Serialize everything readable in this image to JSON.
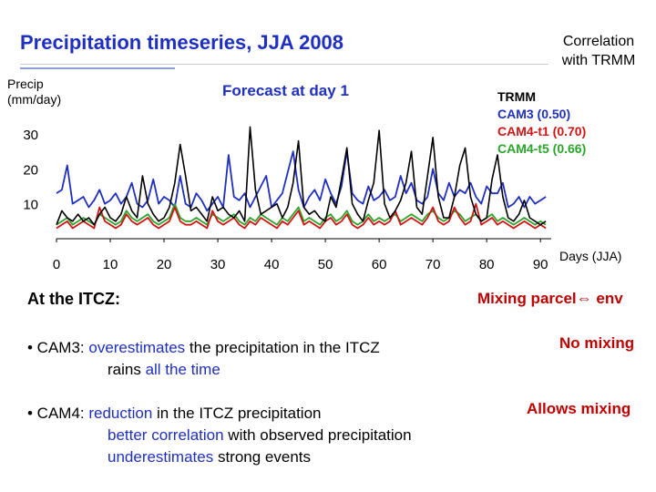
{
  "title": "Precipitation timeseries, JJA 2008",
  "correlation_note": [
    "Correlation",
    "with TRMM"
  ],
  "ylabel": [
    "Precip",
    "(mm/day)"
  ],
  "forecast_label": "Forecast at day 1",
  "legend": [
    {
      "label": "TRMM",
      "color": "#000000"
    },
    {
      "label": "CAM3 (0.50)",
      "color": "#1f2fbf"
    },
    {
      "label": "CAM4-t1 (0.70)",
      "color": "#d21414"
    },
    {
      "label": "CAM4-t5 (0.66)",
      "color": "#2aa52a"
    }
  ],
  "xlabel": "Days (JJA)",
  "chart_data": {
    "type": "line",
    "ylim": [
      0,
      36
    ],
    "xlim": [
      0,
      92
    ],
    "x_ticks": [
      0,
      10,
      20,
      30,
      40,
      50,
      60,
      70,
      80,
      90
    ],
    "y_ticks": [
      10,
      20,
      30
    ],
    "grid": false,
    "series": [
      {
        "name": "TRMM",
        "color": "#000000",
        "values": [
          4,
          8,
          6,
          5,
          7,
          5,
          6,
          4,
          7,
          9,
          6,
          5,
          7,
          12,
          8,
          6,
          18,
          10,
          7,
          5,
          6,
          9,
          16,
          27,
          18,
          8,
          9,
          7,
          5,
          12,
          8,
          9,
          7,
          6,
          8,
          5,
          32,
          14,
          7,
          8,
          9,
          10,
          6,
          9,
          16,
          28,
          9,
          7,
          8,
          6,
          5,
          12,
          9,
          17,
          26,
          10,
          7,
          5,
          11,
          16,
          31,
          10,
          6,
          8,
          11,
          16,
          25,
          9,
          7,
          18,
          29,
          12,
          6,
          6,
          12,
          21,
          26,
          12,
          7,
          5,
          6,
          17,
          24,
          12,
          6,
          5,
          7,
          11,
          6,
          5,
          4,
          5
        ]
      },
      {
        "name": "CAM3 (0.50)",
        "color": "#1f2fbf",
        "values": [
          13,
          14,
          21,
          10,
          11,
          12,
          9,
          11,
          14,
          10,
          11,
          13,
          10,
          12,
          16,
          10,
          9,
          11,
          17,
          10,
          12,
          11,
          9,
          18,
          10,
          9,
          13,
          11,
          8,
          10,
          12,
          9,
          24,
          12,
          11,
          13,
          9,
          12,
          15,
          18,
          9,
          11,
          13,
          19,
          25,
          14,
          9,
          12,
          14,
          11,
          17,
          13,
          10,
          15,
          25,
          13,
          11,
          10,
          15,
          11,
          12,
          14,
          11,
          12,
          18,
          13,
          16,
          11,
          10,
          12,
          20,
          13,
          11,
          16,
          12,
          14,
          13,
          16,
          12,
          10,
          15,
          13,
          13,
          16,
          9,
          10,
          12,
          9,
          12,
          10,
          11,
          12
        ]
      },
      {
        "name": "CAM4-t1 (0.70)",
        "color": "#d21414",
        "values": [
          3,
          4,
          5,
          3,
          4,
          5,
          4,
          3,
          9,
          5,
          4,
          3,
          4,
          7,
          5,
          4,
          5,
          6,
          4,
          3,
          4,
          5,
          9,
          5,
          4,
          4,
          5,
          4,
          3,
          8,
          5,
          4,
          5,
          6,
          4,
          3,
          5,
          4,
          6,
          5,
          4,
          3,
          5,
          4,
          6,
          8,
          4,
          5,
          4,
          3,
          5,
          6,
          4,
          5,
          7,
          4,
          3,
          4,
          6,
          4,
          5,
          4,
          5,
          8,
          4,
          5,
          6,
          5,
          4,
          6,
          9,
          5,
          4,
          5,
          9,
          6,
          4,
          5,
          10,
          4,
          5,
          6,
          4,
          5,
          4,
          3,
          4,
          5,
          4,
          3,
          4,
          3
        ]
      },
      {
        "name": "CAM4-t5 (0.66)",
        "color": "#2aa52a",
        "values": [
          4,
          5,
          6,
          4,
          5,
          6,
          5,
          4,
          7,
          6,
          5,
          4,
          5,
          8,
          6,
          5,
          6,
          7,
          5,
          4,
          5,
          6,
          10,
          6,
          5,
          5,
          6,
          5,
          4,
          7,
          6,
          5,
          6,
          7,
          5,
          4,
          6,
          5,
          7,
          6,
          5,
          4,
          6,
          5,
          7,
          9,
          5,
          6,
          5,
          4,
          6,
          7,
          5,
          6,
          8,
          5,
          4,
          5,
          7,
          5,
          6,
          5,
          6,
          7,
          5,
          6,
          7,
          6,
          5,
          7,
          8,
          6,
          5,
          6,
          8,
          7,
          5,
          6,
          7,
          5,
          6,
          7,
          5,
          6,
          5,
          4,
          5,
          6,
          5,
          4,
          5,
          4
        ]
      }
    ]
  },
  "itcz_heading": "At the ITCZ:",
  "mixing_heading": "Mixing parcel⇔ env",
  "bullets": {
    "cam3": {
      "prefix": "• CAM3: ",
      "line1_hl": "overestimates",
      "line1_rest": " the precipitation in the ITCZ",
      "line2_a": "rains ",
      "line2_hl": "all the time"
    },
    "cam4": {
      "prefix": "• CAM4: ",
      "line1_hl": "reduction",
      "line1_rest": " in the ITCZ precipitation",
      "line2_hl": "better correlation",
      "line2_rest": " with observed precipitation",
      "line3_hl": "underestimates",
      "line3_rest": " strong events"
    }
  },
  "no_mixing": "No mixing",
  "allows_mixing": "Allows mixing"
}
